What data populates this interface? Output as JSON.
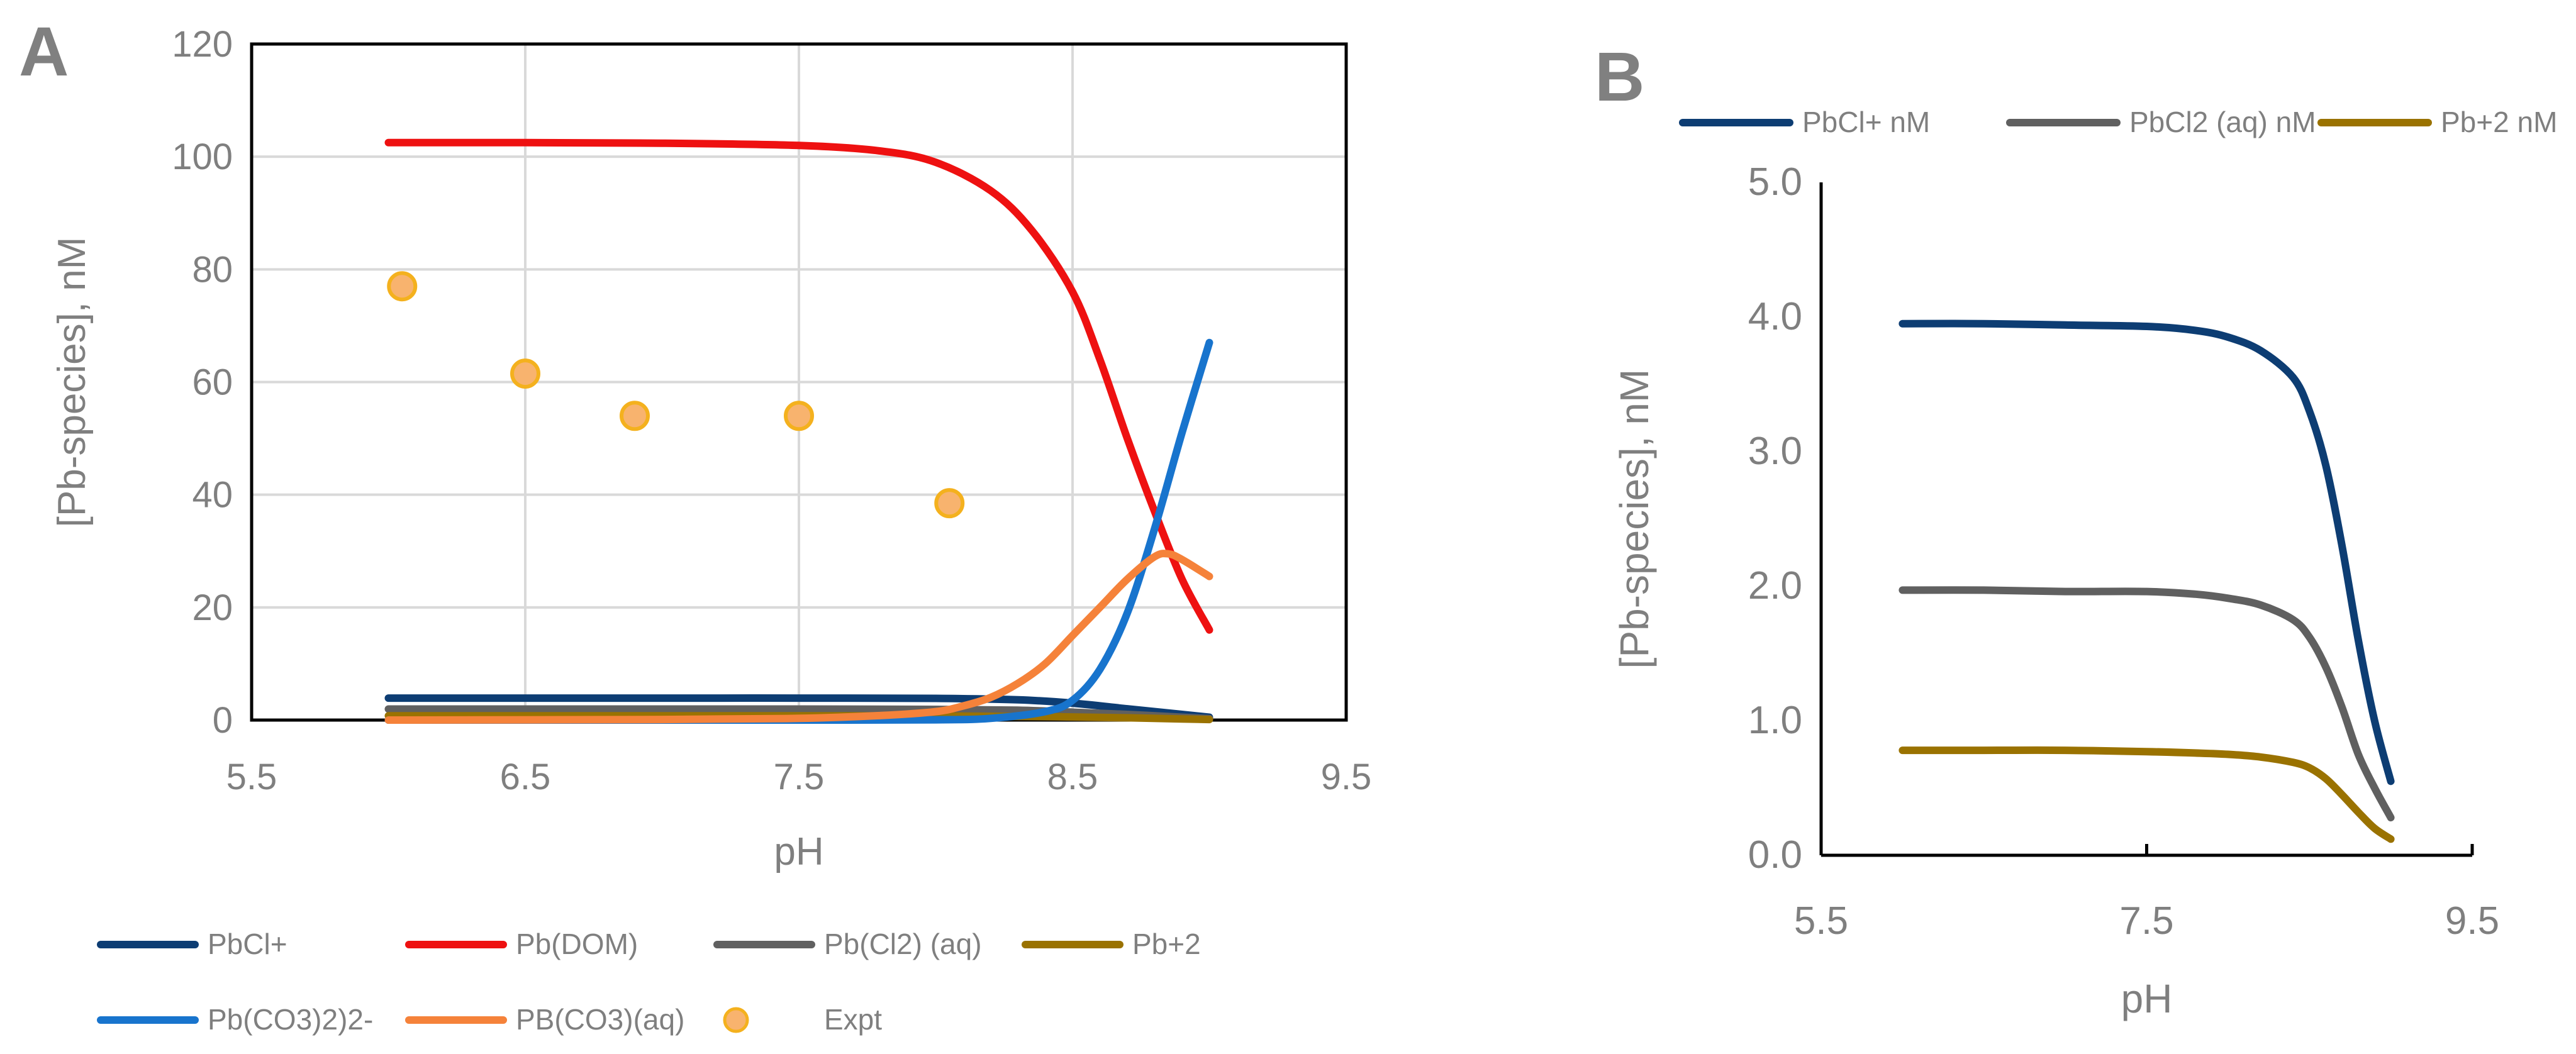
{
  "figure_labels": {
    "a": "A",
    "b": "B"
  },
  "colors": {
    "axis_text": "#7f7f7f",
    "axis_line": "#000000",
    "grid": "#d9d9d9",
    "panel_label": "#808080"
  },
  "chart_data": [
    {
      "id": "A",
      "type": "line",
      "title": "",
      "xlabel": "pH",
      "ylabel": "[Pb-species], nM",
      "xlim": [
        5.5,
        9.5
      ],
      "ylim": [
        0,
        120
      ],
      "xticks": [
        5.5,
        6.5,
        7.5,
        8.5,
        9.5
      ],
      "xtick_labels": [
        "5.5",
        "6.5",
        "7.5",
        "8.5",
        "9.5"
      ],
      "yticks": [
        0,
        20,
        40,
        60,
        80,
        100,
        120
      ],
      "ytick_labels": [
        "0",
        "20",
        "40",
        "60",
        "80",
        "100",
        "120"
      ],
      "grid": true,
      "legend_position": "bottom",
      "series": [
        {
          "name": "PbCl+",
          "kind": "line",
          "color": "#0d3d73",
          "x": [
            6.0,
            6.5,
            7.0,
            7.5,
            8.0,
            8.3,
            8.5,
            8.7,
            8.9,
            9.0
          ],
          "y": [
            3.9,
            3.9,
            3.9,
            3.9,
            3.85,
            3.6,
            3.0,
            2.0,
            1.0,
            0.5
          ]
        },
        {
          "name": "Pb(DOM)",
          "kind": "line",
          "color": "#ee1111",
          "x": [
            6.0,
            6.5,
            7.0,
            7.5,
            7.8,
            8.0,
            8.2,
            8.35,
            8.5,
            8.6,
            8.7,
            8.8,
            8.9,
            9.0
          ],
          "y": [
            102.5,
            102.5,
            102.4,
            102.0,
            101.0,
            99.0,
            94.0,
            87.0,
            76.0,
            64.0,
            50.0,
            37.0,
            25.0,
            16.0
          ]
        },
        {
          "name": "Pb(Cl2) (aq)",
          "kind": "line",
          "color": "#606060",
          "x": [
            6.0,
            6.5,
            7.0,
            7.5,
            8.0,
            8.3,
            8.5,
            8.7,
            8.9,
            9.0
          ],
          "y": [
            1.95,
            1.95,
            1.95,
            1.95,
            1.9,
            1.75,
            1.4,
            1.0,
            0.5,
            0.25
          ]
        },
        {
          "name": "Pb+2",
          "kind": "line",
          "color": "#9a7200",
          "x": [
            6.0,
            6.5,
            7.0,
            7.5,
            8.0,
            8.3,
            8.5,
            8.7,
            8.9,
            9.0
          ],
          "y": [
            0.75,
            0.75,
            0.75,
            0.75,
            0.73,
            0.65,
            0.55,
            0.4,
            0.2,
            0.1
          ]
        },
        {
          "name": "Pb(CO3)2)2-",
          "kind": "line",
          "color": "#1874cd",
          "x": [
            6.0,
            7.0,
            7.5,
            8.0,
            8.2,
            8.4,
            8.5,
            8.6,
            8.7,
            8.8,
            8.9,
            9.0
          ],
          "y": [
            0,
            0,
            0,
            0.05,
            0.3,
            1.5,
            3.5,
            9.0,
            19.0,
            34.0,
            51.0,
            67.0
          ]
        },
        {
          "name": "PB(CO3)(aq)",
          "kind": "line",
          "color": "#f5823a",
          "x": [
            6.0,
            7.0,
            7.5,
            7.8,
            8.0,
            8.1,
            8.2,
            8.3,
            8.4,
            8.5,
            8.6,
            8.7,
            8.8,
            8.85,
            8.9,
            9.0
          ],
          "y": [
            0,
            0.1,
            0.3,
            0.8,
            1.5,
            2.5,
            4.0,
            6.5,
            10.0,
            15.0,
            20.0,
            25.0,
            29.0,
            29.5,
            28.5,
            25.5
          ]
        },
        {
          "name": "Expt",
          "kind": "scatter",
          "color": "#f8b36e",
          "x": [
            6.05,
            6.5,
            6.9,
            7.5,
            8.05
          ],
          "y": [
            77,
            61.5,
            54,
            54,
            38.5
          ]
        }
      ]
    },
    {
      "id": "B",
      "type": "line",
      "title": "",
      "xlabel": "pH",
      "ylabel": "[Pb-species], nM",
      "xlim": [
        5.5,
        9.5
      ],
      "ylim": [
        0,
        5
      ],
      "xticks": [
        5.5,
        7.5,
        9.5
      ],
      "xtick_labels": [
        "5.5",
        "7.5",
        "9.5"
      ],
      "yticks": [
        0,
        1,
        2,
        3,
        4,
        5
      ],
      "ytick_labels": [
        "0.0",
        "1.0",
        "2.0",
        "3.0",
        "4.0",
        "5.0"
      ],
      "grid": false,
      "legend_position": "top",
      "series": [
        {
          "name": "PbCl+ nM",
          "kind": "line",
          "color": "#0d3d73",
          "x": [
            6.0,
            6.5,
            7.0,
            7.5,
            7.8,
            8.0,
            8.2,
            8.4,
            8.5,
            8.6,
            8.7,
            8.8,
            8.9,
            9.0
          ],
          "y": [
            3.95,
            3.95,
            3.94,
            3.93,
            3.9,
            3.85,
            3.75,
            3.55,
            3.3,
            2.9,
            2.3,
            1.6,
            1.0,
            0.55
          ]
        },
        {
          "name": "PbCl2 (aq) nM",
          "kind": "line",
          "color": "#606060",
          "x": [
            6.0,
            6.5,
            7.0,
            7.5,
            7.8,
            8.0,
            8.2,
            8.4,
            8.5,
            8.6,
            8.7,
            8.8,
            8.9,
            9.0
          ],
          "y": [
            1.97,
            1.97,
            1.96,
            1.96,
            1.94,
            1.91,
            1.86,
            1.75,
            1.62,
            1.4,
            1.1,
            0.75,
            0.5,
            0.28
          ]
        },
        {
          "name": "Pb+2 nM",
          "kind": "line",
          "color": "#9a7200",
          "x": [
            6.0,
            6.5,
            7.0,
            7.5,
            7.8,
            8.0,
            8.2,
            8.4,
            8.5,
            8.6,
            8.7,
            8.8,
            8.9,
            9.0
          ],
          "y": [
            0.78,
            0.78,
            0.78,
            0.77,
            0.76,
            0.75,
            0.73,
            0.69,
            0.65,
            0.57,
            0.45,
            0.32,
            0.2,
            0.12
          ]
        }
      ]
    }
  ]
}
